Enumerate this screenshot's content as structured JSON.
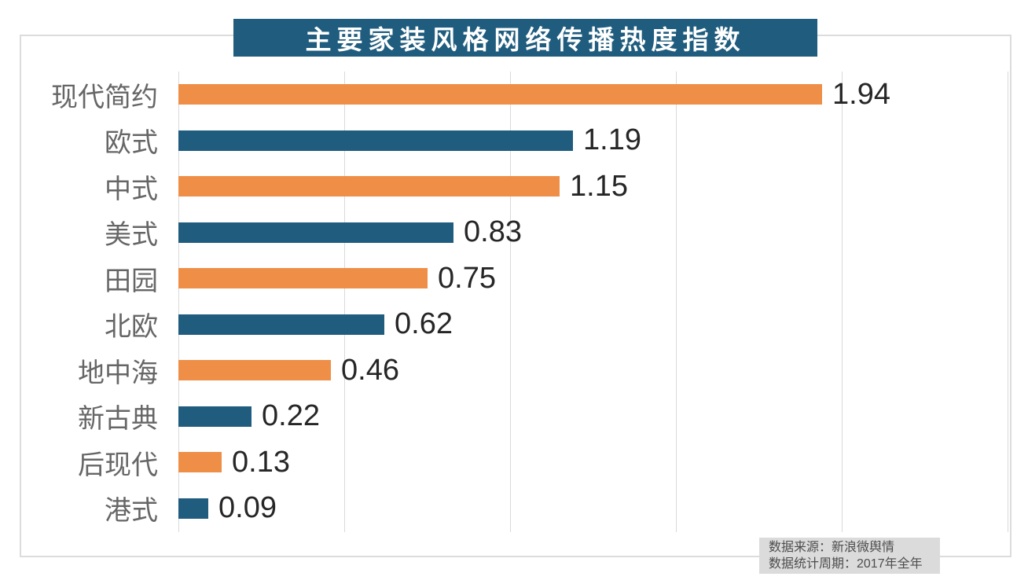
{
  "chart_data": {
    "type": "bar",
    "orientation": "horizontal",
    "title": "主要家装风格网络传播热度指数",
    "categories": [
      "现代简约",
      "欧式",
      "中式",
      "美式",
      "田园",
      "北欧",
      "地中海",
      "新古典",
      "后现代",
      "港式"
    ],
    "values": [
      1.94,
      1.19,
      1.15,
      0.83,
      0.75,
      0.62,
      0.46,
      0.22,
      0.13,
      0.09
    ],
    "xlabel": "",
    "ylabel": "",
    "xlim": [
      0,
      2.5
    ],
    "gridline_step": 0.5,
    "grid": "vertical-only",
    "legend": "none",
    "value_labels_decimals": 2,
    "bar_color_pattern": [
      "#ef8e46",
      "#1f5c7e"
    ]
  },
  "footer": {
    "source": "数据来源：新浪微舆情",
    "period": "数据统计周期：2017年全年"
  },
  "colors": {
    "title_background": "#1f5c7e",
    "title_text": "#ffffff",
    "bar_orange": "#ef8e46",
    "bar_blue": "#1f5c7e",
    "category_label": "#666666",
    "value_label": "#262626",
    "gridline": "#d9d9d9",
    "card_border": "#dcdcdc",
    "source_box_background": "#dbdbdb",
    "source_box_text": "#4d4d4d"
  }
}
